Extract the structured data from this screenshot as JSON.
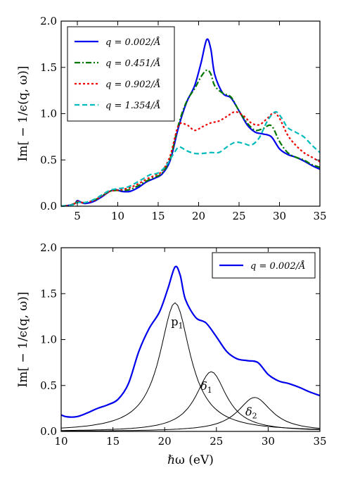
{
  "chart_data": [
    {
      "type": "line",
      "xlabel": "",
      "ylabel": "Im[ − 1/ϵ(q, ω)]",
      "xlim": [
        3,
        35
      ],
      "ylim": [
        0,
        2.0
      ],
      "xticks": [
        "5",
        "10",
        "15",
        "20",
        "25",
        "30",
        "35"
      ],
      "yticks": [
        "0.0",
        "0.5",
        "1.0",
        "1.5",
        "2.0"
      ],
      "grid": false,
      "legend_position": "top-left",
      "series": [
        {
          "name": "q = 0.002/Å",
          "color": "#0000ee",
          "style": "solid",
          "points": [
            [
              3,
              0.0
            ],
            [
              4,
              0.01
            ],
            [
              4.7,
              0.03
            ],
            [
              5.0,
              0.06
            ],
            [
              5.5,
              0.04
            ],
            [
              6,
              0.03
            ],
            [
              7,
              0.05
            ],
            [
              8,
              0.1
            ],
            [
              9,
              0.16
            ],
            [
              9.7,
              0.18
            ],
            [
              10.5,
              0.16
            ],
            [
              11.5,
              0.16
            ],
            [
              12.5,
              0.2
            ],
            [
              13.5,
              0.26
            ],
            [
              14.5,
              0.3
            ],
            [
              15.5,
              0.35
            ],
            [
              16.5,
              0.5
            ],
            [
              17.5,
              0.85
            ],
            [
              18.5,
              1.12
            ],
            [
              19.5,
              1.3
            ],
            [
              20.3,
              1.55
            ],
            [
              21,
              1.8
            ],
            [
              21.5,
              1.7
            ],
            [
              22,
              1.42
            ],
            [
              23,
              1.22
            ],
            [
              24,
              1.17
            ],
            [
              25,
              1.03
            ],
            [
              26,
              0.88
            ],
            [
              27,
              0.8
            ],
            [
              28,
              0.78
            ],
            [
              29,
              0.75
            ],
            [
              30,
              0.62
            ],
            [
              31,
              0.56
            ],
            [
              32,
              0.53
            ],
            [
              33,
              0.49
            ],
            [
              34,
              0.44
            ],
            [
              35,
              0.4
            ]
          ]
        },
        {
          "name": "q = 0.451/Å",
          "color": "#007700",
          "style": "dashdot",
          "points": [
            [
              3,
              0.0
            ],
            [
              4,
              0.01
            ],
            [
              4.7,
              0.03
            ],
            [
              5.0,
              0.05
            ],
            [
              5.5,
              0.04
            ],
            [
              6,
              0.04
            ],
            [
              7,
              0.06
            ],
            [
              8,
              0.11
            ],
            [
              9,
              0.16
            ],
            [
              9.7,
              0.17
            ],
            [
              10.5,
              0.17
            ],
            [
              11.5,
              0.18
            ],
            [
              12.5,
              0.22
            ],
            [
              13.5,
              0.27
            ],
            [
              14.5,
              0.31
            ],
            [
              15.5,
              0.36
            ],
            [
              16.5,
              0.52
            ],
            [
              17.5,
              0.88
            ],
            [
              18.5,
              1.13
            ],
            [
              19.5,
              1.27
            ],
            [
              20.3,
              1.4
            ],
            [
              21,
              1.47
            ],
            [
              21.5,
              1.43
            ],
            [
              22,
              1.3
            ],
            [
              23,
              1.22
            ],
            [
              24,
              1.18
            ],
            [
              25,
              1.03
            ],
            [
              26,
              0.9
            ],
            [
              27,
              0.82
            ],
            [
              28,
              0.84
            ],
            [
              29,
              0.87
            ],
            [
              30,
              0.7
            ],
            [
              31,
              0.58
            ],
            [
              32,
              0.53
            ],
            [
              33,
              0.5
            ],
            [
              34,
              0.45
            ],
            [
              35,
              0.42
            ]
          ]
        },
        {
          "name": "q = 0.902/Å",
          "color": "#ee0000",
          "style": "dotted",
          "points": [
            [
              3,
              0.0
            ],
            [
              4,
              0.01
            ],
            [
              4.7,
              0.03
            ],
            [
              5.0,
              0.05
            ],
            [
              5.5,
              0.04
            ],
            [
              6,
              0.04
            ],
            [
              7,
              0.06
            ],
            [
              8,
              0.11
            ],
            [
              9,
              0.16
            ],
            [
              9.7,
              0.17
            ],
            [
              10.5,
              0.18
            ],
            [
              11.5,
              0.2
            ],
            [
              12.5,
              0.24
            ],
            [
              13.5,
              0.29
            ],
            [
              14.5,
              0.33
            ],
            [
              15.5,
              0.38
            ],
            [
              16.5,
              0.55
            ],
            [
              17.5,
              0.87
            ],
            [
              18.5,
              0.88
            ],
            [
              19.5,
              0.82
            ],
            [
              20.5,
              0.86
            ],
            [
              21.5,
              0.9
            ],
            [
              22.5,
              0.92
            ],
            [
              23.5,
              0.97
            ],
            [
              24.5,
              1.02
            ],
            [
              25.5,
              0.98
            ],
            [
              26.5,
              0.9
            ],
            [
              27.5,
              0.88
            ],
            [
              28.5,
              0.95
            ],
            [
              29.3,
              1.01
            ],
            [
              30,
              0.95
            ],
            [
              31,
              0.77
            ],
            [
              32,
              0.66
            ],
            [
              33,
              0.58
            ],
            [
              34,
              0.53
            ],
            [
              35,
              0.48
            ]
          ]
        },
        {
          "name": "q = 1.354/Å",
          "color": "#00bbbb",
          "style": "dashed",
          "points": [
            [
              3,
              0.0
            ],
            [
              4,
              0.01
            ],
            [
              4.7,
              0.02
            ],
            [
              5.0,
              0.04
            ],
            [
              5.5,
              0.04
            ],
            [
              6,
              0.04
            ],
            [
              7,
              0.07
            ],
            [
              8,
              0.12
            ],
            [
              9,
              0.17
            ],
            [
              10,
              0.19
            ],
            [
              11,
              0.2
            ],
            [
              12,
              0.24
            ],
            [
              13,
              0.29
            ],
            [
              14,
              0.34
            ],
            [
              15,
              0.36
            ],
            [
              16,
              0.44
            ],
            [
              17,
              0.58
            ],
            [
              17.6,
              0.64
            ],
            [
              18.5,
              0.6
            ],
            [
              19.5,
              0.57
            ],
            [
              20.5,
              0.57
            ],
            [
              21.5,
              0.58
            ],
            [
              22.5,
              0.58
            ],
            [
              23.5,
              0.64
            ],
            [
              24.5,
              0.69
            ],
            [
              25.5,
              0.68
            ],
            [
              26.5,
              0.66
            ],
            [
              27.5,
              0.74
            ],
            [
              28.5,
              0.92
            ],
            [
              29.5,
              1.02
            ],
            [
              30.3,
              0.95
            ],
            [
              31,
              0.85
            ],
            [
              32,
              0.8
            ],
            [
              33,
              0.75
            ],
            [
              34,
              0.66
            ],
            [
              35,
              0.58
            ]
          ]
        }
      ]
    },
    {
      "type": "line",
      "xlabel": "ℏω (eV)",
      "ylabel": "Im[ − 1/ϵ(q, ω)]",
      "xlim": [
        10,
        35
      ],
      "ylim": [
        0,
        2.0
      ],
      "xticks": [
        "10",
        "15",
        "20",
        "25",
        "30",
        "35"
      ],
      "yticks": [
        "0.0",
        "0.5",
        "1.0",
        "1.5",
        "2.0"
      ],
      "grid": false,
      "legend_position": "top-right",
      "series": [
        {
          "name": "q = 0.002/Å",
          "color": "#0000ee",
          "style": "solid",
          "points": [
            [
              10,
              0.18
            ],
            [
              10.5,
              0.16
            ],
            [
              11.5,
              0.16
            ],
            [
              12.5,
              0.2
            ],
            [
              13.5,
              0.25
            ],
            [
              14.5,
              0.29
            ],
            [
              15.5,
              0.35
            ],
            [
              16.5,
              0.52
            ],
            [
              17.5,
              0.87
            ],
            [
              18.5,
              1.12
            ],
            [
              19.5,
              1.3
            ],
            [
              20.3,
              1.55
            ],
            [
              21,
              1.79
            ],
            [
              21.5,
              1.7
            ],
            [
              22,
              1.44
            ],
            [
              23,
              1.24
            ],
            [
              24,
              1.18
            ],
            [
              25,
              1.03
            ],
            [
              26,
              0.87
            ],
            [
              27,
              0.79
            ],
            [
              28,
              0.77
            ],
            [
              29,
              0.75
            ],
            [
              30,
              0.62
            ],
            [
              31,
              0.55
            ],
            [
              32,
              0.52
            ],
            [
              33,
              0.48
            ],
            [
              34,
              0.43
            ],
            [
              35,
              0.39
            ]
          ]
        }
      ],
      "components": [
        {
          "label": "p",
          "subscript": "1",
          "center": 21.0,
          "amplitude": 1.4,
          "hwhm": 1.8
        },
        {
          "label": "δ",
          "subscript": "1",
          "center": 24.5,
          "amplitude": 0.65,
          "hwhm": 1.8
        },
        {
          "label": "δ",
          "subscript": "2",
          "center": 28.7,
          "amplitude": 0.37,
          "hwhm": 2.0
        }
      ]
    }
  ]
}
